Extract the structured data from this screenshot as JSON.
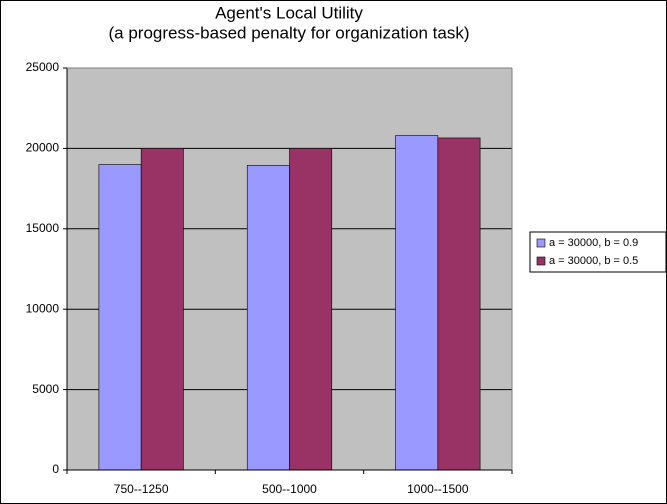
{
  "chart_data": {
    "type": "bar",
    "title": "Agent's Local Utility",
    "subtitle": "(a progress-based penalty for organization task)",
    "categories": [
      "750--1250",
      "500--1000",
      "1000--1500"
    ],
    "series": [
      {
        "name": "a = 30000, b = 0.9",
        "color": "#9999ff",
        "values": [
          19000,
          18950,
          20800
        ]
      },
      {
        "name": "a = 30000, b = 0.5",
        "color": "#993366",
        "values": [
          20000,
          20000,
          20650
        ]
      }
    ],
    "ylim": [
      0,
      25000
    ],
    "yticks": [
      0,
      5000,
      10000,
      15000,
      20000,
      25000
    ],
    "grid": true,
    "legend": "right",
    "plot_background": "#c0c0c0"
  }
}
